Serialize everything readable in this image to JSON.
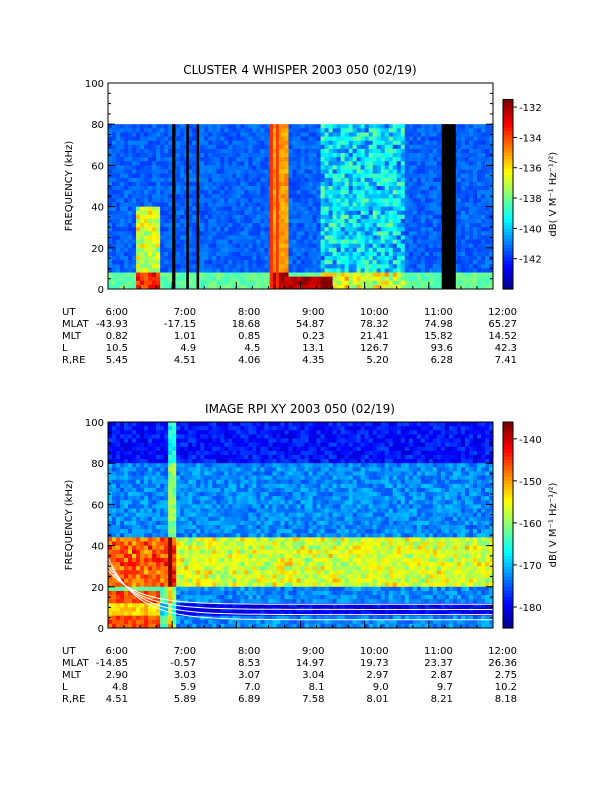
{
  "chart_data": [
    {
      "type": "heatmap",
      "title": "CLUSTER 4 WHISPER 2003 050 (02/19)",
      "ylabel": "FREQUENCY (kHz)",
      "colorbar_label": "dB( V M⁻¹ Hz⁻¹/²)",
      "ylim": [
        0,
        100
      ],
      "y_ticks": [
        "0",
        "20",
        "40",
        "60",
        "80",
        "100"
      ],
      "x_ticks": [
        "6:00",
        "7:00",
        "8:00",
        "9:00",
        "10:00",
        "11:00",
        "12:00"
      ],
      "xlim_hours": [
        6,
        12
      ],
      "data_top_khz": 80,
      "colorbar_ticks": [
        "-132",
        "-134",
        "-136",
        "-138",
        "-140",
        "-142"
      ],
      "colorbar_range": [
        -144,
        -131.5
      ],
      "ephemeris": [
        {
          "label": "UT",
          "values": [
            "6:00",
            "7:00",
            "8:00",
            "9:00",
            "10:00",
            "11:00",
            "12:00"
          ]
        },
        {
          "label": "MLAT",
          "values": [
            "-43.93",
            "-17.15",
            "18.68",
            "54.87",
            "78.32",
            "74.98",
            "65.27"
          ]
        },
        {
          "label": "MLT",
          "values": [
            "0.82",
            "1.01",
            "0.85",
            "0.23",
            "21.41",
            "15.82",
            "14.52"
          ]
        },
        {
          "label": "L",
          "values": [
            "10.5",
            "4.9",
            "4.5",
            "13.1",
            "126.7",
            "93.6",
            "42.3"
          ]
        },
        {
          "label": "R,RE",
          "values": [
            "5.45",
            "4.51",
            "4.06",
            "4.35",
            "5.20",
            "6.28",
            "7.41"
          ]
        }
      ]
    },
    {
      "type": "heatmap",
      "title": "IMAGE RPI XY 2003 050 (02/19)",
      "ylabel": "FREQUENCY (kHz)",
      "colorbar_label": "dB( V M⁻¹ Hz⁻¹/²)",
      "ylim": [
        0,
        100
      ],
      "y_ticks": [
        "0",
        "20",
        "40",
        "60",
        "80",
        "100"
      ],
      "x_ticks": [
        "6:00",
        "7:00",
        "8:00",
        "9:00",
        "10:00",
        "11:00",
        "12:00"
      ],
      "xlim_hours": [
        6,
        12
      ],
      "data_top_khz": 100,
      "colorbar_ticks": [
        "-140",
        "-150",
        "-160",
        "-170",
        "-180"
      ],
      "colorbar_range": [
        -185,
        -136
      ],
      "ephemeris": [
        {
          "label": "UT",
          "values": [
            "6:00",
            "7:00",
            "8:00",
            "9:00",
            "10:00",
            "11:00",
            "12:00"
          ]
        },
        {
          "label": "MLAT",
          "values": [
            "-14.85",
            "-0.57",
            "8.53",
            "14.97",
            "19.73",
            "23.37",
            "26.36"
          ]
        },
        {
          "label": "MLT",
          "values": [
            "2.90",
            "3.03",
            "3.07",
            "3.04",
            "2.97",
            "2.87",
            "2.75"
          ]
        },
        {
          "label": "L",
          "values": [
            "4.8",
            "5.9",
            "7.0",
            "8.1",
            "9.0",
            "9.7",
            "10.2"
          ]
        },
        {
          "label": "R,RE",
          "values": [
            "4.51",
            "5.89",
            "6.89",
            "7.58",
            "8.01",
            "8.21",
            "8.18"
          ]
        }
      ]
    }
  ]
}
